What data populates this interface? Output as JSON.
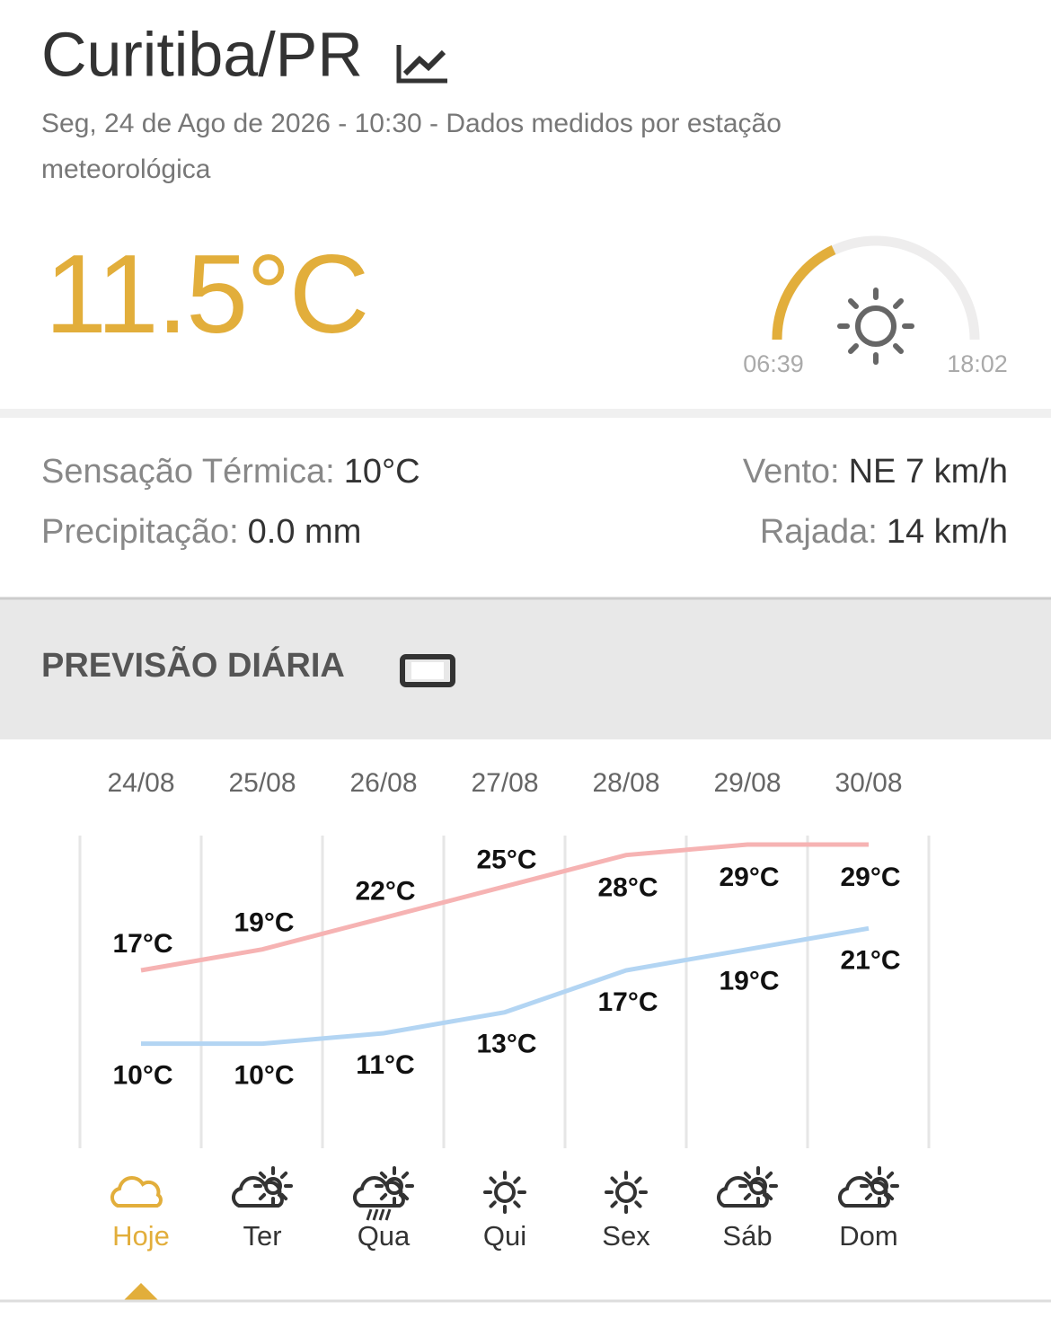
{
  "header": {
    "city": "Curitiba/PR",
    "subtitle": "Seg, 24 de Ago de 2026 - 10:30 - Dados medidos por estação meteorológica"
  },
  "current": {
    "temperature": "11.5°C",
    "sunrise": "06:39",
    "sunset": "18:02"
  },
  "details": {
    "left": [
      {
        "label": "Sensação Térmica:",
        "value": "10°C"
      },
      {
        "label": "Precipitação:",
        "value": "0.0 mm"
      }
    ],
    "right": [
      {
        "label": "Vento:",
        "value": "NE 7 km/h"
      },
      {
        "label": "Rajada:",
        "value": "14 km/h"
      }
    ]
  },
  "forecast": {
    "title": "PREVISÃO DIÁRIA",
    "dates": [
      "24/08",
      "25/08",
      "26/08",
      "27/08",
      "28/08",
      "29/08",
      "30/08"
    ],
    "max_values": [
      17,
      19,
      22,
      25,
      28,
      29,
      29
    ],
    "max_value_labels": [
      "17°C",
      "19°C",
      "22°C",
      "25°C",
      "28°C",
      "29°C",
      "29°C"
    ],
    "max_color": "#f6b3b3",
    "min_values": [
      10,
      10,
      11,
      13,
      17,
      19,
      21
    ],
    "min_value_labels": [
      "10°C",
      "10°C",
      "11°C",
      "13°C",
      "17°C",
      "19°C",
      "21°C"
    ],
    "min_color": "#b3d5f3",
    "days": [
      "Hoje",
      "Ter",
      "Qua",
      "Qui",
      "Sex",
      "Sáb",
      "Dom"
    ]
  }
}
